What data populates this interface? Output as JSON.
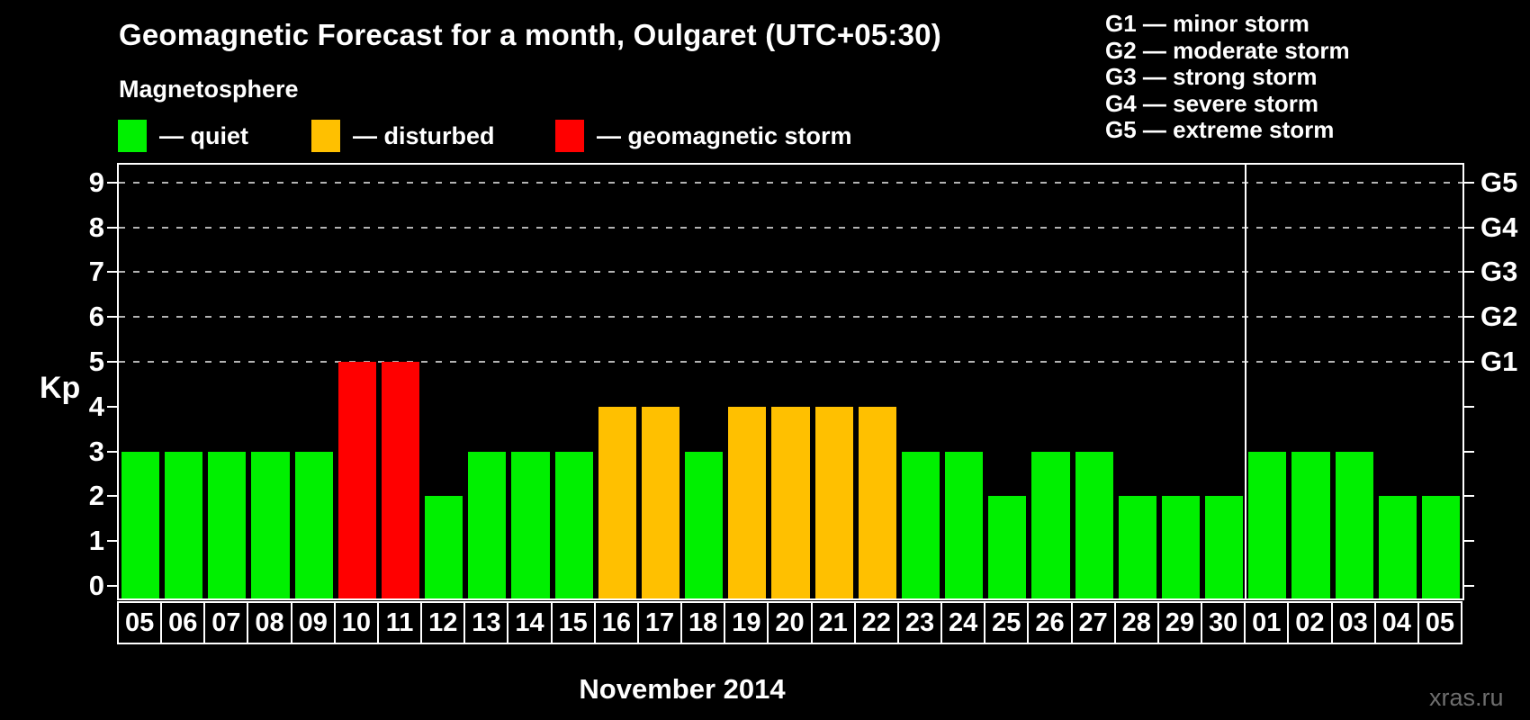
{
  "title": "Geomagnetic Forecast for a month, Oulgaret (UTC+05:30)",
  "legend": {
    "heading": "Magnetosphere",
    "items": [
      {
        "status": "quiet",
        "label": "— quiet",
        "color": "#00f000"
      },
      {
        "status": "disturbed",
        "label": "— disturbed",
        "color": "#ffc000"
      },
      {
        "status": "storm",
        "label": "— geomagnetic storm",
        "color": "#ff0000"
      }
    ]
  },
  "storm_scale": {
    "lines": [
      "G1 — minor storm",
      "G2 — moderate storm",
      "G3 — strong storm",
      "G4 — severe storm",
      "G5 — extreme storm"
    ]
  },
  "chart_data": {
    "type": "bar",
    "title": "Geomagnetic Forecast for a month, Oulgaret (UTC+05:30)",
    "xlabel": "November 2014",
    "ylabel": "Kp",
    "ylim": [
      0,
      9
    ],
    "yticks": [
      0,
      1,
      2,
      3,
      4,
      5,
      6,
      7,
      8,
      9
    ],
    "gridlines_at": [
      5,
      6,
      7,
      8,
      9
    ],
    "grid": "dashed horizontal at storm levels only",
    "legend_position": "top",
    "right_axis": [
      {
        "kp": 5,
        "label": "G1"
      },
      {
        "kp": 6,
        "label": "G2"
      },
      {
        "kp": 7,
        "label": "G3"
      },
      {
        "kp": 8,
        "label": "G4"
      },
      {
        "kp": 9,
        "label": "G5"
      }
    ],
    "categories": [
      "05",
      "06",
      "07",
      "08",
      "09",
      "10",
      "11",
      "12",
      "13",
      "14",
      "15",
      "16",
      "17",
      "18",
      "19",
      "20",
      "21",
      "22",
      "23",
      "24",
      "25",
      "26",
      "27",
      "28",
      "29",
      "30",
      "01",
      "02",
      "03",
      "04",
      "05"
    ],
    "values": [
      3,
      3,
      3,
      3,
      3,
      5,
      5,
      2,
      3,
      3,
      3,
      4,
      4,
      3,
      4,
      4,
      4,
      4,
      3,
      3,
      2,
      3,
      3,
      2,
      2,
      2,
      3,
      3,
      3,
      2,
      2
    ],
    "statuses": [
      "quiet",
      "quiet",
      "quiet",
      "quiet",
      "quiet",
      "storm",
      "storm",
      "quiet",
      "quiet",
      "quiet",
      "quiet",
      "disturbed",
      "disturbed",
      "quiet",
      "disturbed",
      "disturbed",
      "disturbed",
      "disturbed",
      "quiet",
      "quiet",
      "quiet",
      "quiet",
      "quiet",
      "quiet",
      "quiet",
      "quiet",
      "quiet",
      "quiet",
      "quiet",
      "quiet",
      "quiet"
    ],
    "month_separator_after_index": 25
  },
  "axis": {
    "kp_label": "Kp"
  },
  "footer": {
    "xlabel": "November 2014",
    "watermark": "xras.ru"
  },
  "colors": {
    "quiet": "#00f000",
    "disturbed": "#ffc000",
    "storm": "#ff0000",
    "axis": "#ffffff",
    "grid": "#b3b3b3",
    "background": "#000000",
    "watermark": "#6e6e6e"
  }
}
